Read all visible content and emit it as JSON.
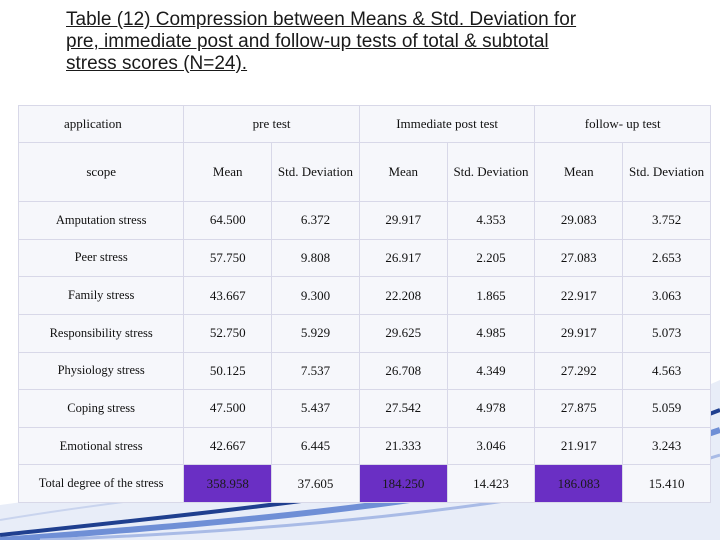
{
  "title": {
    "line1": "Table (12) Compression between Means & Std. Deviation for",
    "line2": "pre, immediate post and follow-up tests of total & subtotal",
    "line3": "stress scores (N=24)."
  },
  "table": {
    "group_headers": {
      "application": "application",
      "pre": "pre test",
      "immediate": "Immediate post test",
      "follow": "follow- up test"
    },
    "sub_headers": {
      "scope": "scope",
      "mean": "Mean",
      "std": "Std. Deviation"
    },
    "rows": [
      {
        "label": "Amputation stress",
        "pre_mean": "64.500",
        "pre_sd": "6.372",
        "imm_mean": "29.917",
        "imm_sd": "4.353",
        "fol_mean": "29.083",
        "fol_sd": "3.752"
      },
      {
        "label": "Peer stress",
        "pre_mean": "57.750",
        "pre_sd": "9.808",
        "imm_mean": "26.917",
        "imm_sd": "2.205",
        "fol_mean": "27.083",
        "fol_sd": "2.653"
      },
      {
        "label": "Family stress",
        "pre_mean": "43.667",
        "pre_sd": "9.300",
        "imm_mean": "22.208",
        "imm_sd": "1.865",
        "fol_mean": "22.917",
        "fol_sd": "3.063"
      },
      {
        "label": "Responsibility stress",
        "pre_mean": "52.750",
        "pre_sd": "5.929",
        "imm_mean": "29.625",
        "imm_sd": "4.985",
        "fol_mean": "29.917",
        "fol_sd": "5.073"
      },
      {
        "label": "Physiology stress",
        "pre_mean": "50.125",
        "pre_sd": "7.537",
        "imm_mean": "26.708",
        "imm_sd": "4.349",
        "fol_mean": "27.292",
        "fol_sd": "4.563"
      },
      {
        "label": "Coping stress",
        "pre_mean": "47.500",
        "pre_sd": "5.437",
        "imm_mean": "27.542",
        "imm_sd": "4.978",
        "fol_mean": "27.875",
        "fol_sd": "5.059"
      },
      {
        "label": "Emotional stress",
        "pre_mean": "42.667",
        "pre_sd": "6.445",
        "imm_mean": "21.333",
        "imm_sd": "3.046",
        "fol_mean": "21.917",
        "fol_sd": "3.243"
      },
      {
        "label": "Total degree of the stress",
        "pre_mean": "358.958",
        "pre_sd": "37.605",
        "imm_mean": "184.250",
        "imm_sd": "14.423",
        "fol_mean": "186.083",
        "fol_sd": "15.410"
      }
    ]
  },
  "colors": {
    "highlight": "#6a2fc4",
    "cell_bg": "#f6f7fb",
    "swoosh_dark": "#1f3f8f",
    "swoosh_light": "#6f8fd6"
  }
}
